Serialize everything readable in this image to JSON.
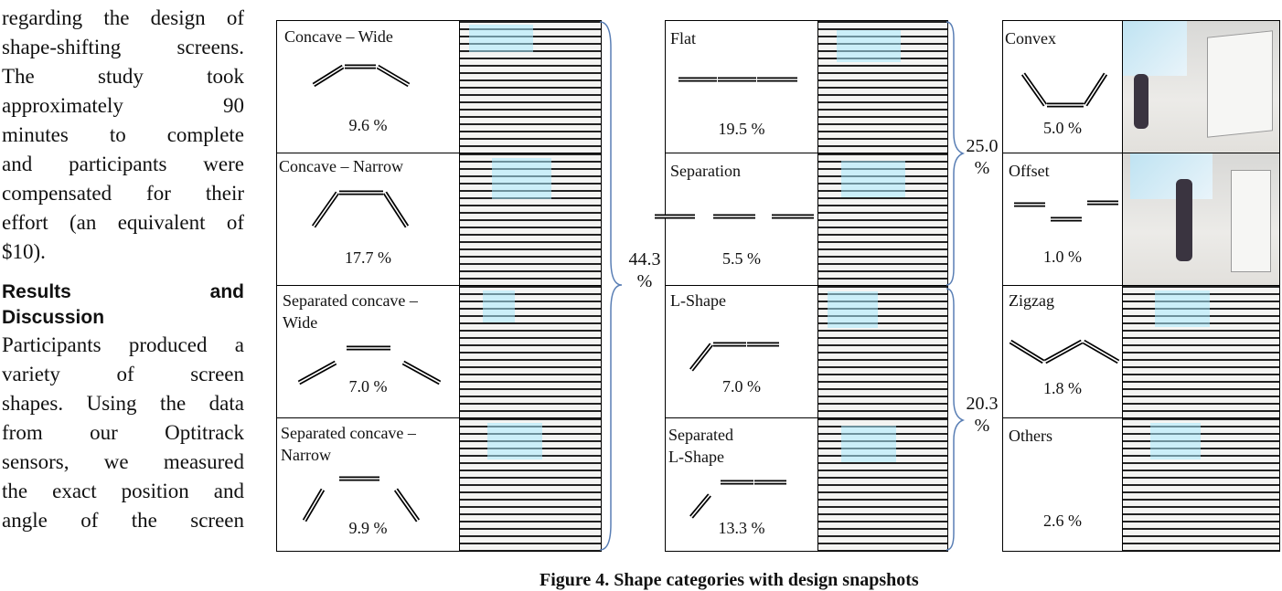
{
  "body_text": {
    "lines": [
      "regarding the design of",
      "shape-shifting screens.",
      "The study took",
      "approximately 90",
      "minutes to complete",
      "and participants were",
      "compensated for their",
      "effort (an equivalent of",
      "$10)."
    ]
  },
  "section_heading": {
    "lines": [
      "Results and",
      "Discussion"
    ]
  },
  "results_text": {
    "lines": [
      "Participants produced a",
      "variety of screen",
      "shapes. Using the data",
      "from our Optitrack",
      "sensors, we measured",
      "the exact position and",
      "angle of the screen"
    ]
  },
  "figure": {
    "caption": "Figure 4. Shape categories with design snapshots",
    "groups": [
      {
        "percent": "44.3",
        "unit": "%"
      },
      {
        "percent": "25.0",
        "unit": "%"
      },
      {
        "percent": "20.3",
        "unit": "%"
      }
    ],
    "categories": [
      {
        "label": "Concave – Wide",
        "percent": "9.6 %"
      },
      {
        "label": "Concave – Narrow",
        "percent": "17.7 %"
      },
      {
        "label": " Separated concave –\nWide",
        "percent": "7.0 %"
      },
      {
        "label": "Separated concave –\nNarrow",
        "percent": "9.9 %"
      },
      {
        "label": "Flat",
        "percent": "19.5 %"
      },
      {
        "label": "Separation",
        "percent": "5.5 %"
      },
      {
        "label": "L-Shape",
        "percent": "7.0 %"
      },
      {
        "label": "Separated\nL-Shape",
        "percent": "13.3 %"
      },
      {
        "label": "Convex",
        "percent": "5.0 %"
      },
      {
        "label": "Offset",
        "percent": "1.0 %"
      },
      {
        "label": "Zigzag",
        "percent": "1.8 %"
      },
      {
        "label": "Others",
        "percent": "2.6 %"
      }
    ]
  },
  "colors": {
    "line": "#000000",
    "brace": "#5a7fb5",
    "glow": "#aaebff"
  }
}
